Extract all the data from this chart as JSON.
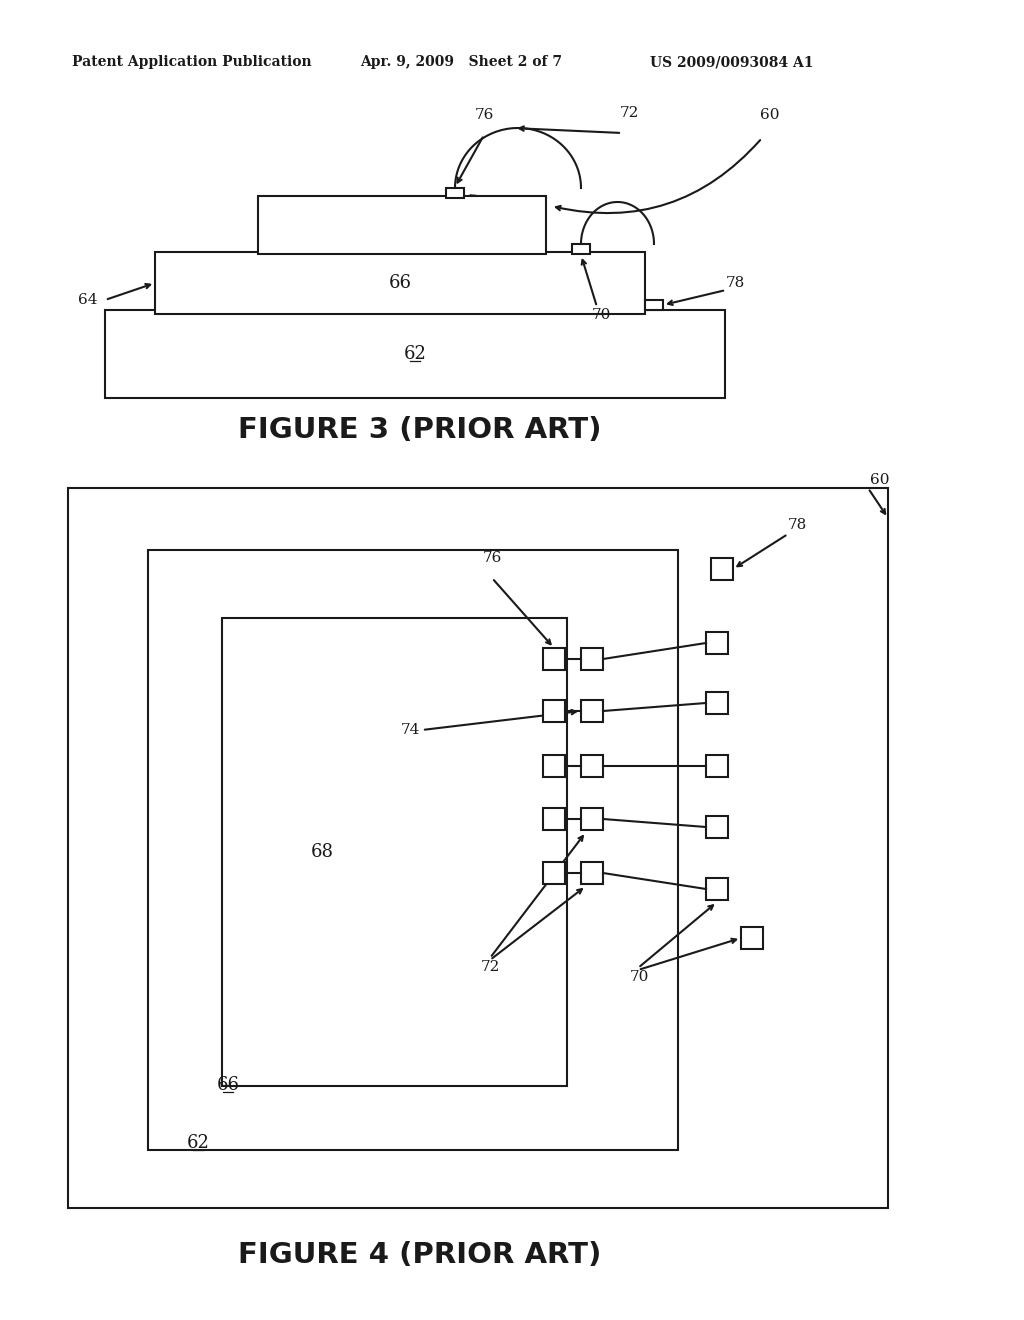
{
  "bg_color": "#ffffff",
  "header_left": "Patent Application Publication",
  "header_mid": "Apr. 9, 2009   Sheet 2 of 7",
  "header_right": "US 2009/0093084 A1",
  "fig3_caption": "FIGURE 3 (PRIOR ART)",
  "fig4_caption": "FIGURE 4 (PRIOR ART)",
  "text_color": "#1a1a1a"
}
